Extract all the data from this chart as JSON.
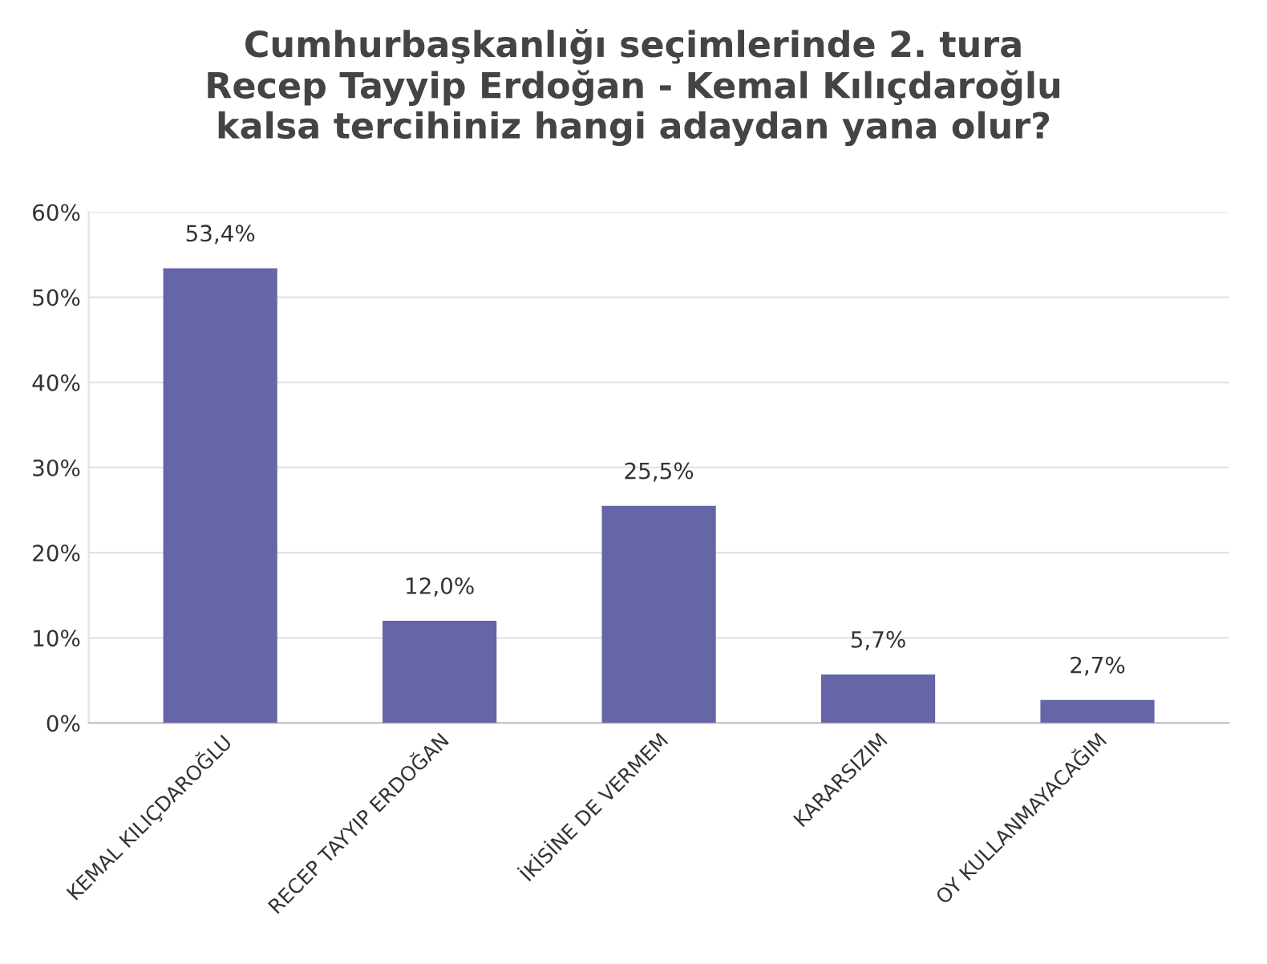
{
  "chart_data": {
    "type": "bar",
    "title": "Cumhurbaşkanlığı seçimlerinde 2. tura\nRecep Tayyip Erdoğan - Kemal Kılıçdaroğlu\nkalsa tercihiniz hangi adaydan yana olur?",
    "categories": [
      "KEMAL KILIÇDAROĞLU",
      "RECEP TAYYIP ERDOĞAN",
      "İKİSİNE DE VERMEM",
      "KARARSIZIM",
      "OY KULLANMAYACAĞIM"
    ],
    "values": [
      53.4,
      12.0,
      25.5,
      5.7,
      2.7
    ],
    "value_labels": [
      "53,4%",
      "12,0%",
      "25,5%",
      "5,7%",
      "2,7%"
    ],
    "color": "#6565a8",
    "ylim": [
      0,
      60
    ],
    "yticks": [
      {
        "value": 0,
        "label": "0%"
      },
      {
        "value": 10,
        "label": "10%"
      },
      {
        "value": 20,
        "label": "20%"
      },
      {
        "value": 30,
        "label": "30%"
      },
      {
        "value": 40,
        "label": "40%"
      },
      {
        "value": 50,
        "label": "50%"
      },
      {
        "value": 60,
        "label": "60%"
      }
    ],
    "grid": "y"
  }
}
